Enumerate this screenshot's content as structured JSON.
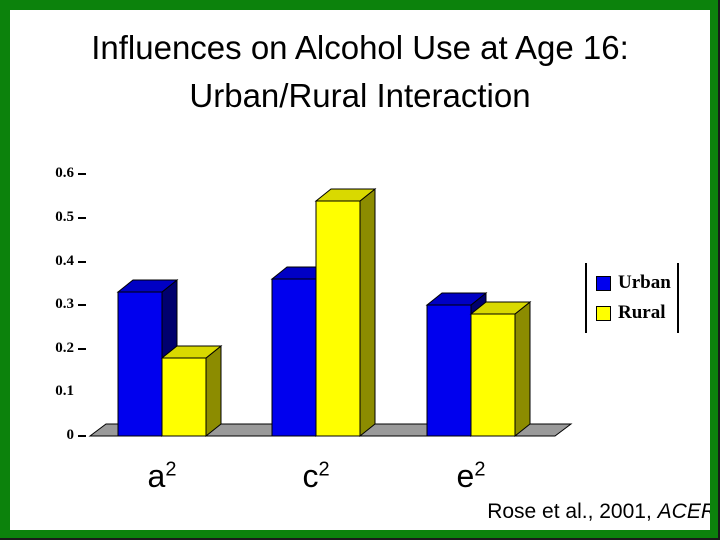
{
  "title": {
    "line1": "Influences on Alcohol Use at Age 16:",
    "line2": "Urban/Rural Interaction"
  },
  "citation": {
    "prefix": "Rose et al., 2001, ",
    "journal": "ACER"
  },
  "colors": {
    "frame_green": "#0c820c",
    "floor_gray": "#9a9a9a",
    "urban_blue": "#0000ee",
    "rural_yellow": "#ffff00"
  },
  "chart_data": {
    "type": "bar",
    "style_3d": true,
    "categories": [
      {
        "base": "a",
        "sup": "2"
      },
      {
        "base": "c",
        "sup": "2"
      },
      {
        "base": "e",
        "sup": "2"
      }
    ],
    "series": [
      {
        "name": "Urban",
        "color": "#0000ee",
        "color_top": "#0000c4",
        "color_side": "#00006e",
        "values": [
          0.33,
          0.36,
          0.3
        ]
      },
      {
        "name": "Rural",
        "color": "#ffff00",
        "color_top": "#d9d900",
        "color_side": "#8c8c00",
        "values": [
          0.18,
          0.54,
          0.28
        ]
      }
    ],
    "ylim": [
      0,
      0.6
    ],
    "yticks": [
      {
        "label": "0.6",
        "tick": true
      },
      {
        "label": "0.5",
        "tick": true
      },
      {
        "label": "0.4",
        "tick": true
      },
      {
        "label": "0.3",
        "tick": true
      },
      {
        "label": "0.2",
        "tick": true
      },
      {
        "label": "0.1",
        "tick": false
      },
      {
        "label": "0",
        "tick": true
      }
    ],
    "grid": false,
    "legend_position": "right"
  }
}
